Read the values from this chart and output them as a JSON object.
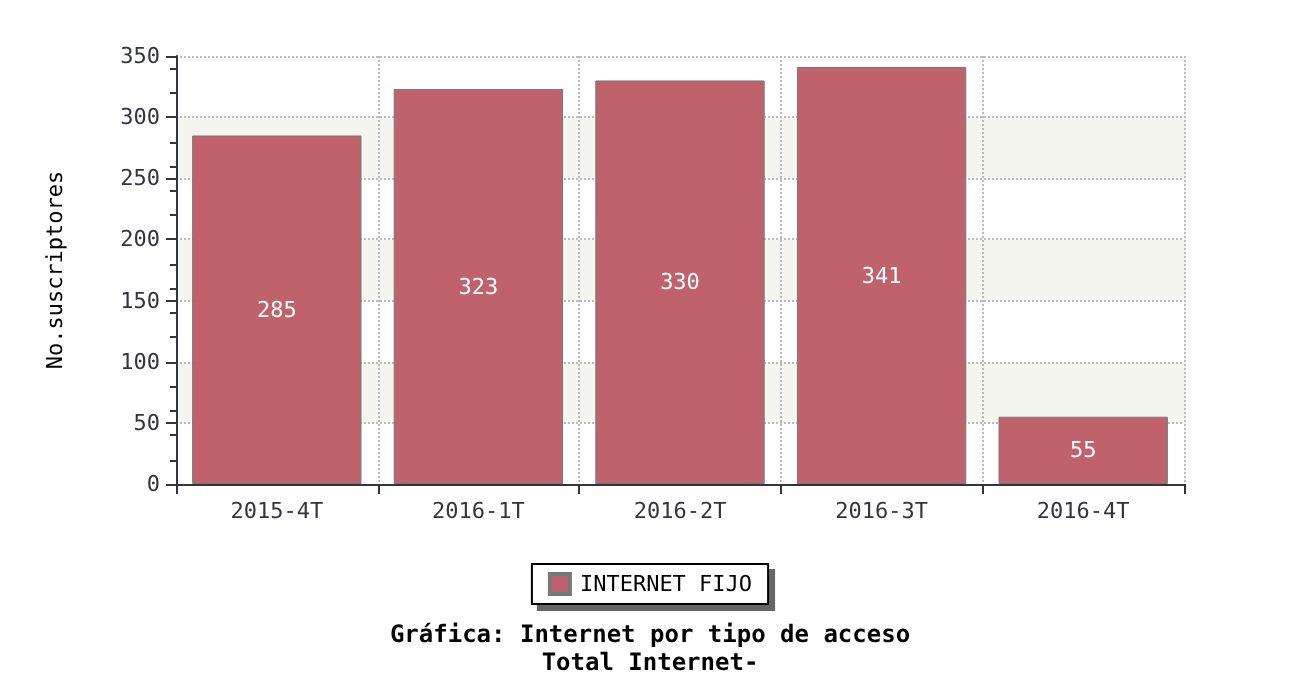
{
  "chart_data": {
    "type": "bar",
    "title": "Gráfica: Internet por tipo de acceso",
    "subtitle": "Total Internet-",
    "ylabel": "No.suscriptores",
    "categories": [
      "2015-4T",
      "2016-1T",
      "2016-2T",
      "2016-3T",
      "2016-4T"
    ],
    "series": [
      {
        "name": "INTERNET FIJO",
        "color": "#c0626b",
        "values": [
          285,
          323,
          330,
          341,
          55
        ]
      }
    ],
    "ylim": [
      0,
      350
    ],
    "yticks": [
      0,
      50,
      100,
      150,
      200,
      250,
      300,
      350
    ],
    "grid": true,
    "legend": "bottom",
    "data_labels": true
  }
}
